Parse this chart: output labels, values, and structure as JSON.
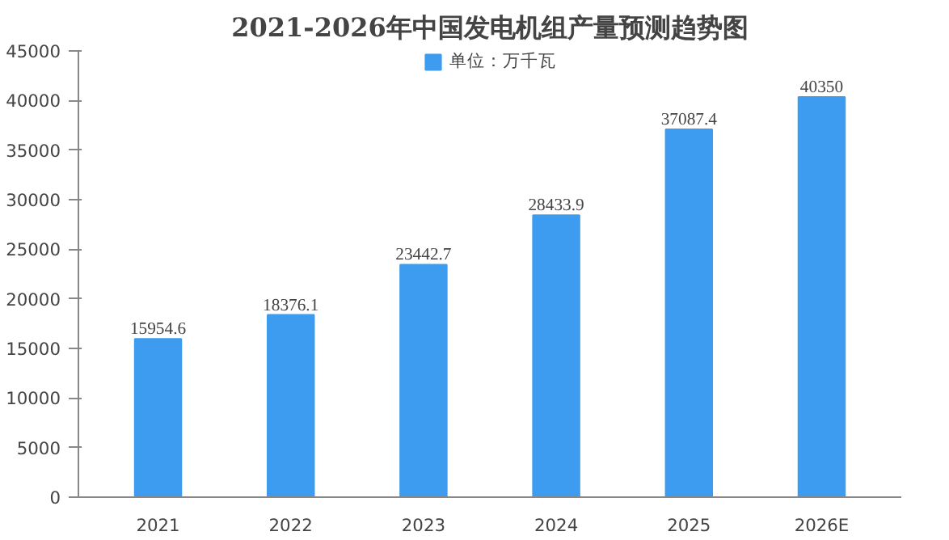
{
  "chart_data": {
    "type": "bar",
    "title": "2021-2026年中国发电机组产量预测趋势图",
    "categories": [
      "2021",
      "2022",
      "2023",
      "2024",
      "2025",
      "2026E"
    ],
    "series": [
      {
        "name": "单位：万千瓦",
        "color": "#3d9cf0",
        "values": [
          15954.6,
          18376.1,
          23442.7,
          28433.9,
          37087.4,
          40350
        ]
      }
    ],
    "ylim": [
      0,
      45000
    ],
    "yticks": [
      0,
      5000,
      10000,
      15000,
      20000,
      25000,
      30000,
      35000,
      40000,
      45000
    ],
    "grid": false,
    "legend": "top",
    "data_labels": true
  }
}
